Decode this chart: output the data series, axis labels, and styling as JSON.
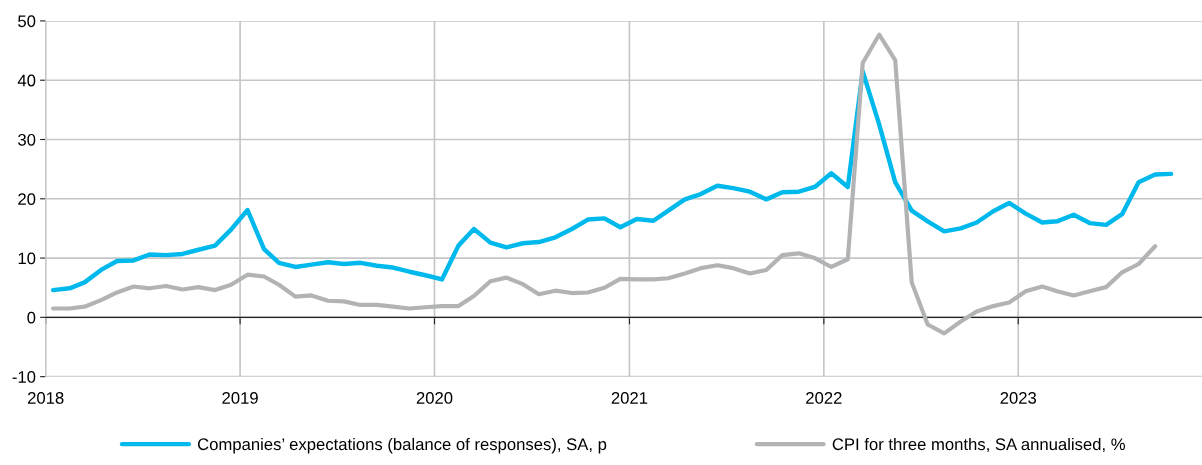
{
  "chart_data": {
    "type": "line",
    "x": [
      "2018-01-15",
      "2018-02-15",
      "2018-03-15",
      "2018-04-15",
      "2018-05-15",
      "2018-06-15",
      "2018-07-15",
      "2018-08-15",
      "2018-09-15",
      "2018-10-15",
      "2018-11-15",
      "2018-12-15",
      "2019-01-15",
      "2019-02-15",
      "2019-03-15",
      "2019-04-15",
      "2019-05-15",
      "2019-06-15",
      "2019-07-15",
      "2019-08-15",
      "2019-09-15",
      "2019-10-15",
      "2019-11-15",
      "2019-12-15",
      "2020-01-15",
      "2020-02-15",
      "2020-03-15",
      "2020-04-15",
      "2020-05-15",
      "2020-06-15",
      "2020-07-15",
      "2020-08-15",
      "2020-09-15",
      "2020-10-15",
      "2020-11-15",
      "2020-12-15",
      "2021-01-15",
      "2021-02-15",
      "2021-03-15",
      "2021-04-15",
      "2021-05-15",
      "2021-06-15",
      "2021-07-15",
      "2021-08-15",
      "2021-09-15",
      "2021-10-15",
      "2021-11-15",
      "2021-12-15",
      "2022-01-15",
      "2022-02-15",
      "2022-03-15",
      "2022-04-15",
      "2022-05-15",
      "2022-06-15",
      "2022-07-15",
      "2022-08-15",
      "2022-09-15",
      "2022-10-15",
      "2022-11-15",
      "2022-12-15",
      "2023-01-15",
      "2023-02-15",
      "2023-03-15",
      "2023-04-15",
      "2023-05-15",
      "2023-06-15",
      "2023-07-15",
      "2023-08-15",
      "2023-09-15",
      "2023-10-15"
    ],
    "series": [
      {
        "name": "Companies’ expectations (balance of responses), SA, p",
        "color": "#00b9ec",
        "values": [
          4.6,
          4.9,
          5.9,
          8.0,
          9.5,
          9.6,
          10.6,
          10.5,
          10.7,
          11.4,
          12.1,
          14.8,
          18.1,
          11.5,
          9.2,
          8.5,
          8.9,
          9.3,
          9.0,
          9.2,
          8.7,
          8.4,
          7.7,
          7.1,
          6.4,
          12.1,
          14.9,
          12.6,
          11.8,
          12.5,
          12.7,
          13.5,
          14.9,
          16.5,
          16.7,
          15.2,
          16.6,
          16.3,
          18.0,
          19.9,
          20.8,
          22.2,
          21.8,
          21.2,
          19.9,
          21.1,
          21.2,
          22.0,
          24.3,
          22.0,
          41.5,
          32.5,
          22.8,
          18.0,
          16.2,
          14.5,
          15.0,
          16.0,
          17.9,
          19.3,
          17.5,
          16.0,
          16.2,
          17.3,
          15.9,
          15.6,
          17.4,
          22.8,
          24.1,
          24.2
        ]
      },
      {
        "name": "CPI for three months, SA annualised, %",
        "color": "#b1b3b5",
        "values": [
          1.5,
          1.5,
          1.8,
          2.9,
          4.2,
          5.2,
          4.9,
          5.3,
          4.7,
          5.1,
          4.6,
          5.5,
          7.2,
          6.9,
          5.5,
          3.5,
          3.7,
          2.8,
          2.7,
          2.1,
          2.1,
          1.8,
          1.5,
          1.7,
          1.9,
          1.9,
          3.6,
          6.1,
          6.7,
          5.6,
          3.9,
          4.5,
          4.1,
          4.2,
          5.0,
          6.5,
          6.4,
          6.4,
          6.6,
          7.4,
          8.3,
          8.8,
          8.3,
          7.4,
          8.0,
          10.5,
          10.8,
          10.0,
          8.5,
          9.8,
          42.9,
          47.7,
          43.4,
          5.9,
          -1.2,
          -2.7,
          -0.7,
          1.0,
          1.9,
          2.5,
          4.4,
          5.2,
          4.4,
          3.7,
          4.4,
          5.1,
          7.6,
          9.0,
          12.0,
          null
        ]
      }
    ],
    "xlim": [
      "2018-01-01",
      "2023-12-12"
    ],
    "xticks": [
      "2018",
      "2019",
      "2020",
      "2021",
      "2022",
      "2023"
    ],
    "ylim": [
      -10,
      50
    ],
    "yticks": [
      -10,
      0,
      10,
      20,
      30,
      40,
      50
    ],
    "grid": true,
    "legend": "bottom",
    "marker": "none",
    "line_style": "solid"
  }
}
